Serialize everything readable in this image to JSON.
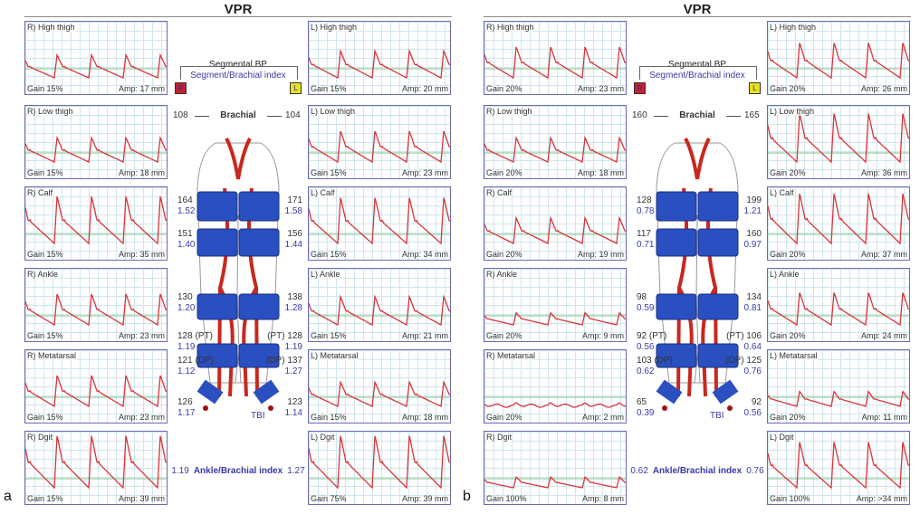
{
  "colors": {
    "trace": "#d9343a",
    "cuff": "#2a4fc0",
    "artery": "#c8281e",
    "index": "#3a3aa8",
    "r_box": "#c8202a",
    "l_box": "#e8e020"
  },
  "panels": [
    {
      "label": "a",
      "title": "VPR",
      "legend": {
        "segmental_bp": "Segmental BP",
        "segment_index": "Segment/Brachial index",
        "r": "R",
        "l": "L"
      },
      "brachial": {
        "r": "108",
        "label": "Brachial",
        "l": "104"
      },
      "right_charts": [
        {
          "name": "R) High thigh",
          "gain": "Gain 15%",
          "amp": "Amp: 17 mm"
        },
        {
          "name": "R) Low thigh",
          "gain": "Gain 15%",
          "amp": "Amp: 18 mm"
        },
        {
          "name": "R) Calf",
          "gain": "Gain 15%",
          "amp": "Amp: 35 mm"
        },
        {
          "name": "R) Ankle",
          "gain": "Gain 15%",
          "amp": "Amp: 23 mm"
        },
        {
          "name": "R) Metatarsal",
          "gain": "Gain 15%",
          "amp": "Amp: 23 mm"
        },
        {
          "name": "R) Dgit",
          "gain": "Gain 15%",
          "amp": "Amp: 39 mm"
        }
      ],
      "left_charts": [
        {
          "name": "L) High thigh",
          "gain": "Gain 15%",
          "amp": "Amp: 20 mm"
        },
        {
          "name": "L) Low thigh",
          "gain": "Gain 15%",
          "amp": "Amp: 23 mm"
        },
        {
          "name": "L) Calf",
          "gain": "Gain 15%",
          "amp": "Amp: 34 mm"
        },
        {
          "name": "L) Ankle",
          "gain": "Gain 15%",
          "amp": "Amp: 21 mm"
        },
        {
          "name": "L) Metatarsal",
          "gain": "Gain 15%",
          "amp": "Amp: 18 mm"
        },
        {
          "name": "L) Dgit",
          "gain": "Gain 75%",
          "amp": "Amp: 39 mm"
        }
      ],
      "segments": [
        {
          "r_bp": "164",
          "r_idx": "1.52",
          "l_bp": "171",
          "l_idx": "1.58"
        },
        {
          "r_bp": "151",
          "r_idx": "1.40",
          "l_bp": "156",
          "l_idx": "1.44"
        },
        {
          "r_bp": "130",
          "r_idx": "1.20",
          "l_bp": "138",
          "l_idx": "1.28"
        },
        {
          "r_bp": "128 (PT)",
          "r_idx": "1.19",
          "l_bp": "(PT) 128",
          "l_idx": "1.19"
        },
        {
          "r_bp": "121 (DP)",
          "r_idx": "1.12",
          "l_bp": "(DP) 137",
          "l_idx": "1.27"
        },
        {
          "r_bp": "126",
          "r_idx": "1.17",
          "l_bp": "123",
          "l_idx": "1.14"
        }
      ],
      "tbi": "TBI",
      "abi": {
        "r": "1.19",
        "label": "Ankle/Brachial index",
        "l": "1.27"
      }
    },
    {
      "label": "b",
      "title": "VPR",
      "legend": {
        "segmental_bp": "Segmental BP",
        "segment_index": "Segment/Brachial index",
        "r": "R",
        "l": "L"
      },
      "brachial": {
        "r": "160",
        "label": "Brachial",
        "l": "165"
      },
      "right_charts": [
        {
          "name": "R) High thigh",
          "gain": "Gain 20%",
          "amp": "Amp: 23 mm"
        },
        {
          "name": "R) Low thigh",
          "gain": "Gain 20%",
          "amp": "Amp: 18 mm"
        },
        {
          "name": "R) Calf",
          "gain": "Gain 20%",
          "amp": "Amp: 19 mm"
        },
        {
          "name": "R) Ankle",
          "gain": "Gain 20%",
          "amp": "Amp: 9 mm"
        },
        {
          "name": "R) Metatarsal",
          "gain": "Gain 20%",
          "amp": "Amp: 2 mm"
        },
        {
          "name": "R) Dgit",
          "gain": "Gain 100%",
          "amp": "Amp: 8 mm"
        }
      ],
      "left_charts": [
        {
          "name": "L) High thigh",
          "gain": "Gain 20%",
          "amp": "Amp: 26 mm"
        },
        {
          "name": "L) Low thigh",
          "gain": "Gain 20%",
          "amp": "Amp: 36 mm"
        },
        {
          "name": "L) Calf",
          "gain": "Gain 20%",
          "amp": "Amp: 37 mm"
        },
        {
          "name": "L) Ankle",
          "gain": "Gain 20%",
          "amp": "Amp: 24 mm"
        },
        {
          "name": "L) Metatarsal",
          "gain": "Gain 20%",
          "amp": "Amp: 11 mm"
        },
        {
          "name": "L) Dgit",
          "gain": "Gain 100%",
          "amp": "Amp: >34 mm"
        }
      ],
      "segments": [
        {
          "r_bp": "128",
          "r_idx": "0.78",
          "l_bp": "199",
          "l_idx": "1.21"
        },
        {
          "r_bp": "117",
          "r_idx": "0.71",
          "l_bp": "160",
          "l_idx": "0.97"
        },
        {
          "r_bp": "98",
          "r_idx": "0.59",
          "l_bp": "134",
          "l_idx": "0.81"
        },
        {
          "r_bp": "92 (PT)",
          "r_idx": "0.56",
          "l_bp": "(PT) 106",
          "l_idx": "0.64"
        },
        {
          "r_bp": "103 (DP)",
          "r_idx": "0.62",
          "l_bp": "(DP) 125",
          "l_idx": "0.76"
        },
        {
          "r_bp": "65",
          "r_idx": "0.39",
          "l_bp": "92",
          "l_idx": "0.56"
        }
      ],
      "tbi": "TBI",
      "abi": {
        "r": "0.62",
        "label": "Ankle/Brachial index",
        "l": "0.76"
      }
    }
  ]
}
